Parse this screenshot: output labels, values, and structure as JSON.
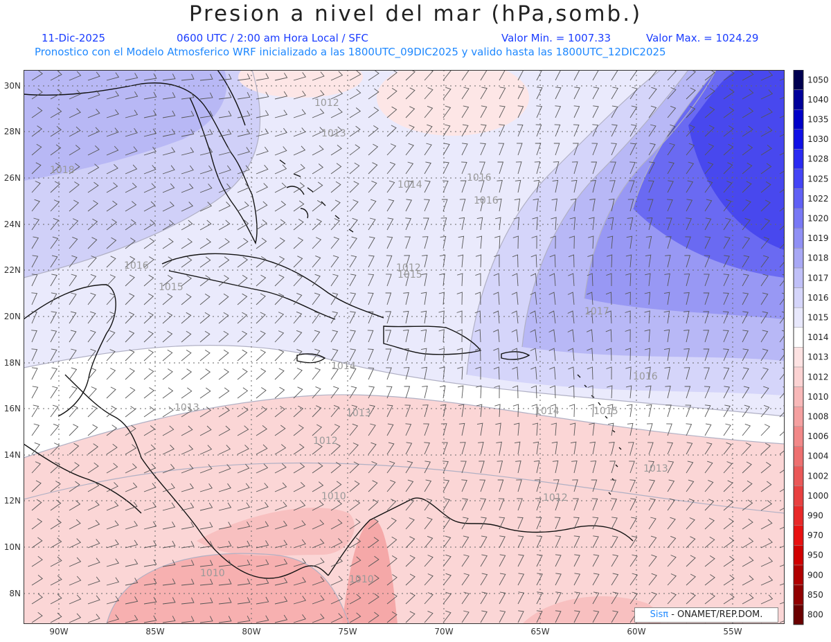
{
  "title": "Presion a nivel del mar (hPa,somb.)",
  "date": "11-Dic-2025",
  "time_info": "0600 UTC / 2:00 am Hora Local / SFC",
  "min_label": "Valor Min. = 1007.33",
  "max_label": "Valor Max. = 1024.29",
  "description": "Pronostico con el Modelo Atmosferico WRF inicializado a las 1800UTC_09DIC2025 y valido hasta las  1800UTC_12DIC2025",
  "x_ticks": [
    "90W",
    "85W",
    "80W",
    "75W",
    "70W",
    "65W",
    "60W",
    "55W"
  ],
  "y_ticks": [
    "30N",
    "28N",
    "26N",
    "24N",
    "22N",
    "20N",
    "18N",
    "16N",
    "14N",
    "12N",
    "10N",
    "8N"
  ],
  "legend": {
    "levels": [
      "1050",
      "1040",
      "1035",
      "1030",
      "1028",
      "1025",
      "1022",
      "1020",
      "1019",
      "1018",
      "1017",
      "1016",
      "1015",
      "1014",
      "1013",
      "1012",
      "1010",
      "1008",
      "1006",
      "1004",
      "1002",
      "1000",
      "990",
      "970",
      "950",
      "900",
      "850",
      "800"
    ],
    "colors": [
      "#000050",
      "#00009a",
      "#0000c8",
      "#1010e6",
      "#2a2af2",
      "#4444f5",
      "#6060f5",
      "#7878f5",
      "#9090f5",
      "#a8a8f5",
      "#c0c0f8",
      "#d5d5fa",
      "#e8e8fc",
      "#ffffff",
      "#fde2e2",
      "#fbd2d2",
      "#f8b8b8",
      "#f5a0a0",
      "#f28888",
      "#ee7070",
      "#ea5858",
      "#e84040",
      "#e82828",
      "#e81010",
      "#d00000",
      "#b00000",
      "#900000",
      "#6a0000"
    ]
  },
  "contour_labels": [
    "1012",
    "1013",
    "1014",
    "1015",
    "1016",
    "1017",
    "1018",
    "1010",
    "1012",
    "1013",
    "1014",
    "1015",
    "1016",
    "1014",
    "1013",
    "1012",
    "1010",
    "1016",
    "1015",
    "1013",
    "1012",
    "1016",
    "1010"
  ],
  "brand": {
    "sis": "Sisπ",
    "org": " - ONAMET/REP.DOM."
  }
}
